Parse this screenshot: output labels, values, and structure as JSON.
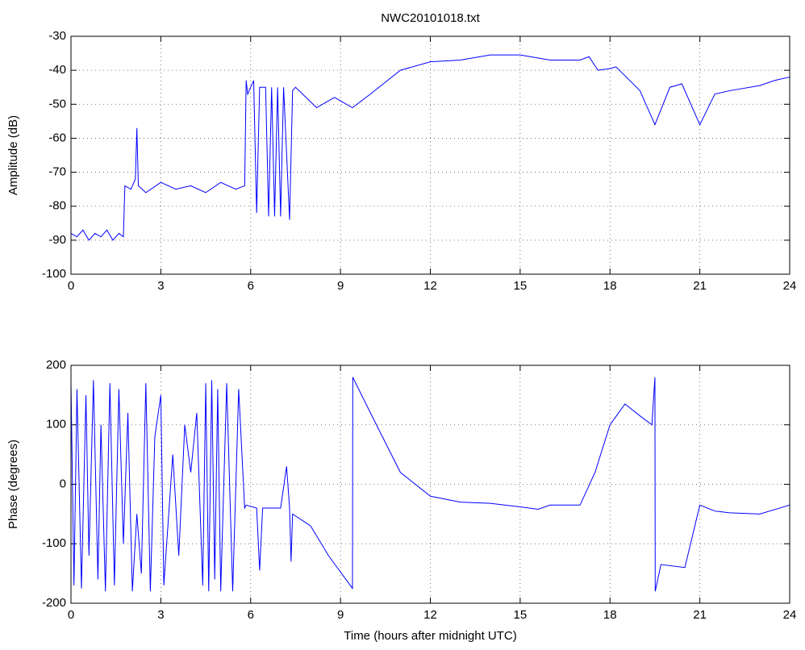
{
  "chart_data": [
    {
      "type": "line",
      "title": "NWC20101018.txt",
      "y_label": "Amplitude (dB)",
      "color": "#0000ff",
      "grid": true,
      "xlim": [
        0,
        24
      ],
      "xticks": [
        0,
        3,
        6,
        9,
        12,
        15,
        18,
        21,
        24
      ],
      "ylim": [
        -100,
        -30
      ],
      "yticks": [
        -100,
        -90,
        -80,
        -70,
        -60,
        -50,
        -40,
        -30
      ],
      "x": [
        0,
        0.2,
        0.4,
        0.6,
        0.8,
        1.0,
        1.2,
        1.4,
        1.6,
        1.75,
        1.8,
        2.0,
        2.15,
        2.2,
        2.25,
        2.5,
        3,
        3.5,
        4,
        4.5,
        5,
        5.5,
        5.8,
        5.85,
        5.9,
        6.1,
        6.2,
        6.3,
        6.5,
        6.6,
        6.7,
        6.8,
        6.9,
        7.0,
        7.1,
        7.3,
        7.4,
        7.5,
        8.2,
        8.8,
        9.4,
        10,
        11,
        12,
        13,
        14,
        15,
        16,
        17,
        17.3,
        17.6,
        18,
        18.2,
        19,
        19.5,
        20,
        20.4,
        21,
        21.5,
        22,
        23,
        23.5,
        24
      ],
      "values": [
        -88,
        -89,
        -87,
        -90,
        -88,
        -89,
        -87,
        -90,
        -88,
        -89,
        -74,
        -75,
        -72,
        -57,
        -74,
        -76,
        -73,
        -75,
        -74,
        -76,
        -73,
        -75,
        -74,
        -43,
        -47,
        -43,
        -82,
        -45,
        -45,
        -83,
        -45,
        -83,
        -45,
        -83,
        -45,
        -84,
        -46,
        -45,
        -51,
        -48,
        -51,
        -47,
        -40,
        -37.5,
        -37,
        -35.5,
        -35.5,
        -37,
        -37,
        -36,
        -40,
        -39.5,
        -39,
        -46,
        -56,
        -45,
        -44,
        -56,
        -47,
        -46,
        -44.5,
        -43,
        -42
      ]
    },
    {
      "type": "line",
      "x_label": "Time (hours after midnight UTC)",
      "y_label": "Phase (degrees)",
      "color": "#0000ff",
      "grid": true,
      "xlim": [
        0,
        24
      ],
      "xticks": [
        0,
        3,
        6,
        9,
        12,
        15,
        18,
        21,
        24
      ],
      "ylim": [
        -200,
        200
      ],
      "yticks": [
        -200,
        -100,
        0,
        100,
        200
      ],
      "x": [
        0,
        0.1,
        0.2,
        0.35,
        0.5,
        0.6,
        0.75,
        0.9,
        1.0,
        1.15,
        1.3,
        1.45,
        1.6,
        1.75,
        1.9,
        2.05,
        2.2,
        2.35,
        2.5,
        2.65,
        2.8,
        3.0,
        3.1,
        3.25,
        3.4,
        3.6,
        3.8,
        4.0,
        4.2,
        4.4,
        4.5,
        4.6,
        4.7,
        4.8,
        4.9,
        5.0,
        5.2,
        5.4,
        5.6,
        5.8,
        5.85,
        6.2,
        6.3,
        6.4,
        7.0,
        7.2,
        7.3,
        7.35,
        7.4,
        8,
        8.6,
        9.4,
        9.41,
        10,
        11,
        12,
        13,
        14,
        15,
        15.6,
        16,
        17,
        17.5,
        18,
        18.5,
        19,
        19.4,
        19.5,
        19.51,
        19.7,
        20.5,
        21,
        21.5,
        22,
        23,
        24
      ],
      "values": [
        170,
        -170,
        160,
        -175,
        150,
        -120,
        175,
        -160,
        100,
        -180,
        170,
        -170,
        160,
        -100,
        120,
        -180,
        -50,
        -150,
        170,
        -180,
        80,
        150,
        -170,
        -60,
        50,
        -120,
        100,
        20,
        120,
        -170,
        170,
        -180,
        175,
        -160,
        160,
        -180,
        170,
        -180,
        160,
        -40,
        -35,
        -40,
        -145,
        -40,
        -40,
        30,
        -40,
        -130,
        -50,
        -70,
        -120,
        -175,
        180,
        120,
        20,
        -20,
        -30,
        -32,
        -38,
        -42,
        -35,
        -35,
        20,
        100,
        135,
        115,
        100,
        180,
        -180,
        -135,
        -140,
        -35,
        -45,
        -48,
        -50,
        -35
      ]
    }
  ]
}
